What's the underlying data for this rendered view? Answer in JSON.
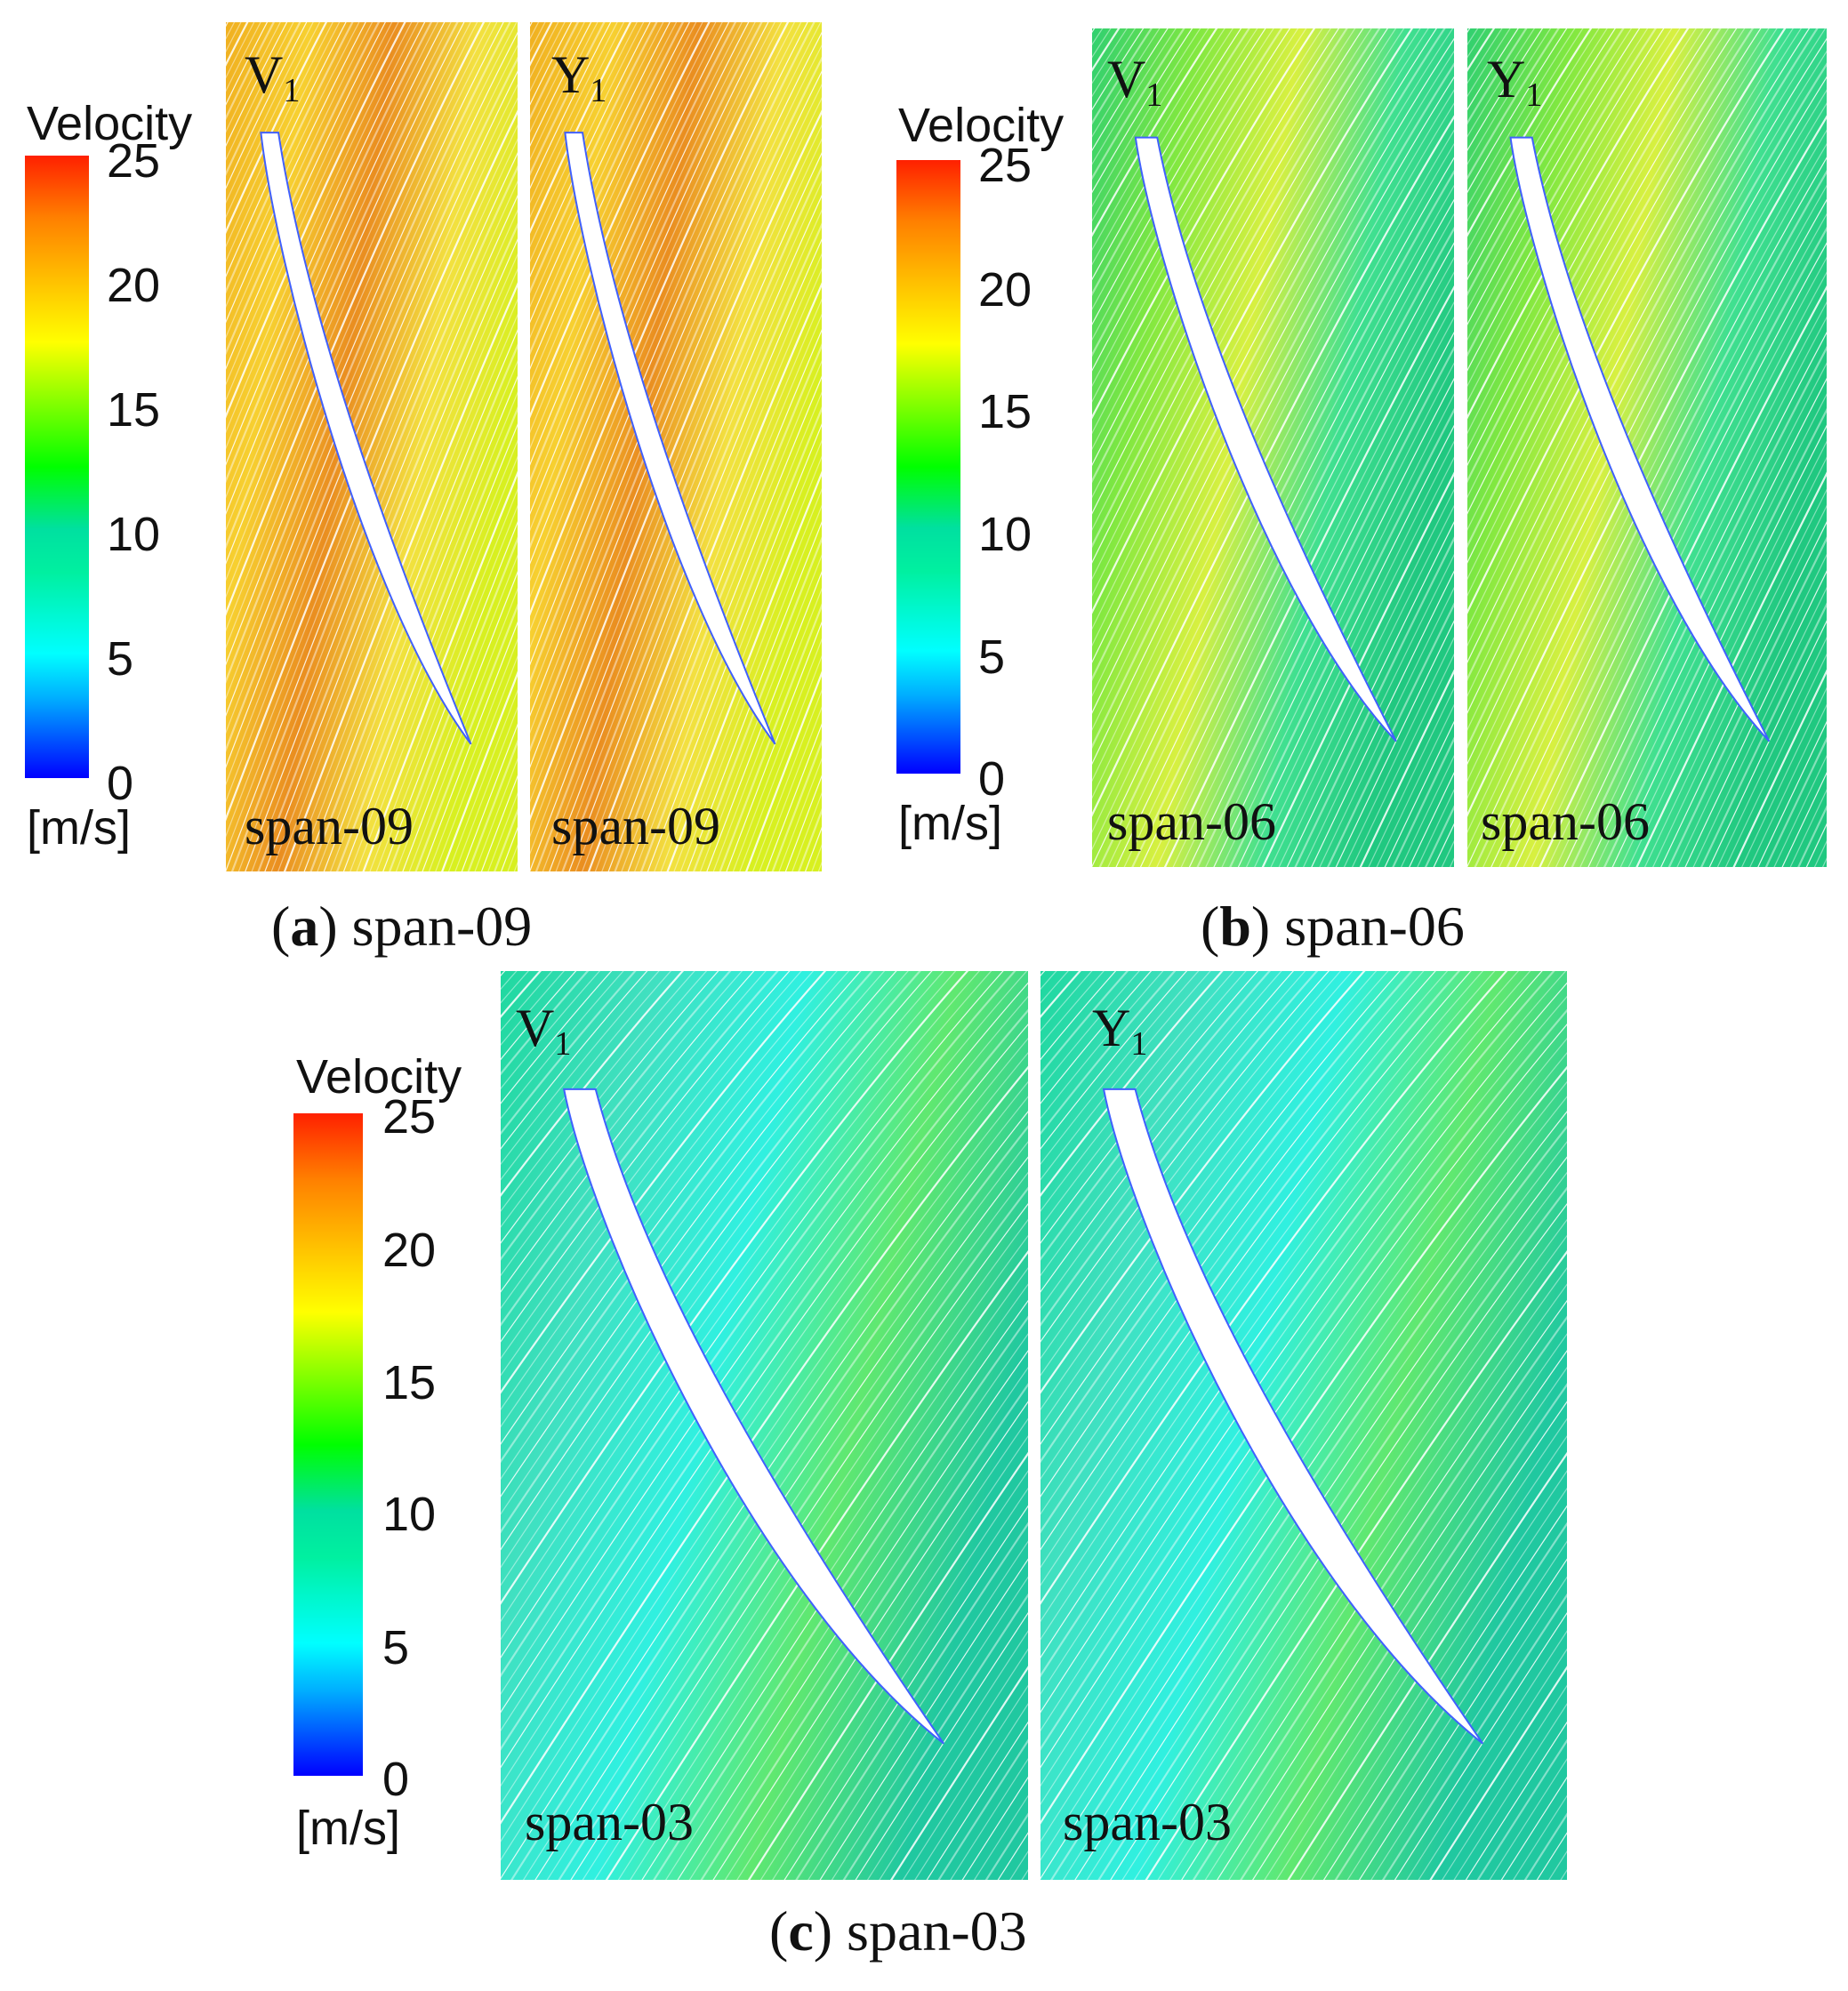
{
  "legend": {
    "title": "Velocity",
    "unit": "[m/s]",
    "ticks": [
      "25",
      "20",
      "15",
      "10",
      "5",
      "0"
    ]
  },
  "colors": {
    "high": "#ff2000",
    "mid": "#00ff00",
    "low": "#0000ff"
  },
  "panels": [
    {
      "tag": "V",
      "sub": "1",
      "span": "span-09",
      "velocity_level": "high"
    },
    {
      "tag": "Y",
      "sub": "1",
      "span": "span-09",
      "velocity_level": "high"
    },
    {
      "tag": "V",
      "sub": "1",
      "span": "span-06",
      "velocity_level": "medium"
    },
    {
      "tag": "Y",
      "sub": "1",
      "span": "span-06",
      "velocity_level": "medium"
    },
    {
      "tag": "V",
      "sub": "1",
      "span": "span-03",
      "velocity_level": "low"
    },
    {
      "tag": "Y",
      "sub": "1",
      "span": "span-03",
      "velocity_level": "low"
    }
  ],
  "captions": {
    "a": {
      "letter": "a",
      "text": "span-09"
    },
    "b": {
      "letter": "b",
      "text": "span-06"
    },
    "c": {
      "letter": "c",
      "text": "span-03"
    }
  }
}
